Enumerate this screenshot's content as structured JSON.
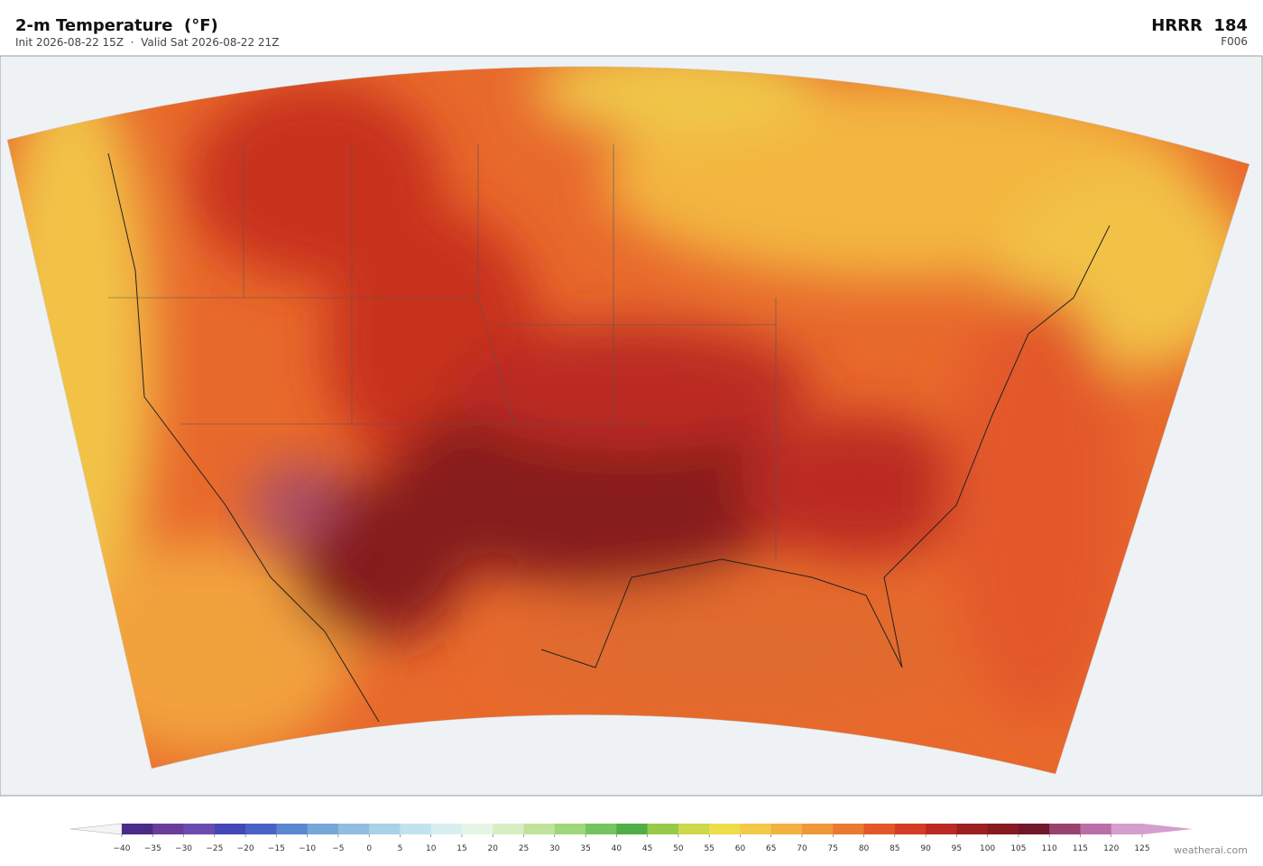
{
  "header": {
    "title": "2-m Temperature  (°F)",
    "subtitle": "Init 2026-08-22 15Z  ·  Valid Sat 2026-08-22 21Z",
    "model": "HRRR  184",
    "forecast_hour": "F006"
  },
  "colorbar": {
    "ticks": [
      {
        "value": -40,
        "label": "−40"
      },
      {
        "value": -35,
        "label": "−35"
      },
      {
        "value": -30,
        "label": "−30"
      },
      {
        "value": -25,
        "label": "−25"
      },
      {
        "value": -20,
        "label": "−20"
      },
      {
        "value": -15,
        "label": "−15"
      },
      {
        "value": -10,
        "label": "−10"
      },
      {
        "value": -5,
        "label": "−5"
      },
      0,
      5,
      10,
      15,
      20,
      25,
      30,
      35,
      40,
      45,
      50,
      55,
      60,
      65,
      70,
      75,
      80,
      85,
      90,
      95,
      100,
      105,
      110,
      115,
      120,
      125
    ],
    "colors": [
      "#4b2a8a",
      "#6a3d9a",
      "#6a4cb0",
      "#4347b8",
      "#4a62c6",
      "#5b86d0",
      "#77a6d8",
      "#93bde0",
      "#a9d2e8",
      "#c1e3ee",
      "#d8eff2",
      "#e6f5e6",
      "#d6eec2",
      "#bfe39b",
      "#9fd67c",
      "#76c45f",
      "#4fae47",
      "#97c94a",
      "#cdd84a",
      "#eedd4a",
      "#f4c949",
      "#f2b140",
      "#ee9838",
      "#e97a30",
      "#e3582a",
      "#d33d25",
      "#bb2a22",
      "#9d1f20",
      "#861a1f",
      "#70182a",
      "#98436e",
      "#bb6fa8",
      "#d49fcc"
    ],
    "under_color": "#f4f4f4",
    "over_color": "#d49fcc"
  },
  "credit": "weatherai.com"
}
